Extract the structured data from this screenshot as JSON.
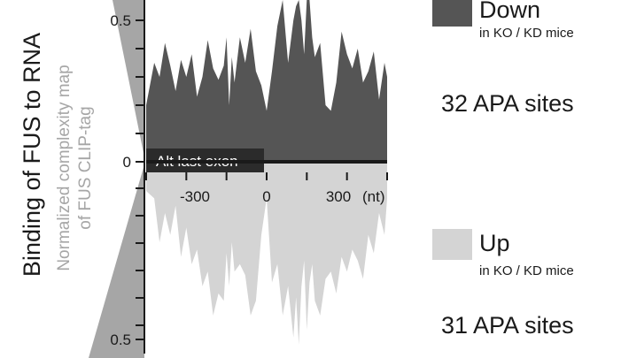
{
  "chart_data": {
    "type": "area",
    "ylabel": "Binding of FUS to RNA",
    "ylabel_secondary": [
      "Normalized complexity map",
      "of FUS CLIP-tag"
    ],
    "x_unit": "(nt)",
    "x_ticks": [
      -300,
      0,
      300
    ],
    "y_ticks_upper": [
      "0.5",
      "0"
    ],
    "y_tick_lower": "0.5",
    "ylim_up": [
      0,
      0.6
    ],
    "ylim_down": [
      0,
      0.5
    ],
    "xlim": [
      -450,
      450
    ],
    "annotation": "Alt last exon",
    "x": [
      -450,
      -420,
      -400,
      -380,
      -360,
      -340,
      -320,
      -300,
      -280,
      -260,
      -240,
      -220,
      -200,
      -180,
      -160,
      -150,
      -140,
      -130,
      -120,
      -100,
      -80,
      -60,
      -40,
      -20,
      0,
      20,
      40,
      60,
      80,
      100,
      110,
      120,
      130,
      140,
      150,
      160,
      170,
      180,
      200,
      220,
      240,
      260,
      280,
      300,
      320,
      340,
      360,
      380,
      400,
      420,
      440,
      450
    ],
    "series": [
      {
        "name": "Down",
        "sublabel": "in KO / KD mice",
        "count_label": "32 APA sites",
        "color": "#555555",
        "values": [
          0.2,
          0.35,
          0.3,
          0.42,
          0.34,
          0.25,
          0.36,
          0.3,
          0.38,
          0.23,
          0.3,
          0.43,
          0.33,
          0.29,
          0.34,
          0.44,
          0.2,
          0.37,
          0.28,
          0.44,
          0.35,
          0.47,
          0.32,
          0.27,
          0.18,
          0.32,
          0.48,
          0.66,
          0.35,
          0.5,
          0.55,
          0.62,
          0.5,
          0.38,
          0.6,
          0.66,
          0.44,
          0.37,
          0.42,
          0.2,
          0.18,
          0.28,
          0.46,
          0.38,
          0.33,
          0.4,
          0.28,
          0.32,
          0.39,
          0.22,
          0.35,
          0.3
        ]
      },
      {
        "name": "Up",
        "sublabel": "in KO / KD mice",
        "count_label": "31 APA sites",
        "color": "#d4d4d4",
        "values": [
          0.08,
          0.1,
          0.22,
          0.14,
          0.2,
          0.12,
          0.26,
          0.18,
          0.28,
          0.24,
          0.34,
          0.3,
          0.42,
          0.36,
          0.38,
          0.25,
          0.34,
          0.22,
          0.3,
          0.28,
          0.31,
          0.42,
          0.38,
          0.2,
          0.1,
          0.33,
          0.28,
          0.42,
          0.34,
          0.48,
          0.37,
          0.5,
          0.34,
          0.27,
          0.46,
          0.33,
          0.28,
          0.38,
          0.42,
          0.32,
          0.3,
          0.36,
          0.26,
          0.3,
          0.24,
          0.27,
          0.32,
          0.2,
          0.25,
          0.14,
          0.2,
          0.1
        ]
      }
    ]
  }
}
